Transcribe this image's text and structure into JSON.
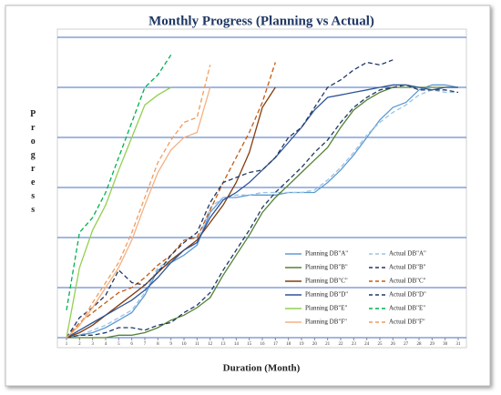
{
  "chart_data": {
    "type": "line",
    "title": "Monthly Progress (Planning vs Actual)",
    "x_label": "Duration (Month)",
    "y_label": "Progress",
    "categories": [
      "1",
      "2",
      "3",
      "4",
      "5",
      "6",
      "7",
      "8",
      "9",
      "10",
      "11",
      "12",
      "13",
      "14",
      "15",
      "16",
      "17",
      "18",
      "19",
      "20",
      "21",
      "22",
      "23",
      "24",
      "25",
      "26",
      "27",
      "28",
      "29",
      "30",
      "31"
    ],
    "ylim": [
      0,
      120
    ],
    "yticks": [
      0,
      20,
      40,
      60,
      80,
      100,
      120
    ],
    "ytick_labels": false,
    "grid": true,
    "legend": "lower right",
    "series": [
      {
        "name": "Planning DB\"A\"",
        "color": "#5b9bd5",
        "dashed": false,
        "values": [
          0,
          1,
          2,
          4,
          7,
          10,
          17,
          27,
          30,
          33,
          37,
          50,
          56,
          56,
          57,
          57,
          57,
          58,
          58,
          58,
          62,
          67,
          73,
          80,
          87,
          92,
          94,
          99,
          101,
          101,
          100
        ]
      },
      {
        "name": "Actual DB\"A\"",
        "color": "#9dc3e6",
        "dashed": true,
        "values": [
          0,
          1,
          3,
          5,
          8,
          11,
          18,
          28,
          31,
          35,
          38,
          52,
          56,
          57,
          57,
          58,
          58,
          58,
          58,
          59,
          63,
          68,
          74,
          81,
          86,
          90,
          93,
          97,
          99,
          98,
          98
        ]
      },
      {
        "name": "Planning DB\"B\"",
        "color": "#548235",
        "dashed": false,
        "values": [
          0,
          0,
          0,
          0,
          1,
          1,
          2,
          4,
          7,
          9,
          12,
          16,
          25,
          33,
          41,
          50,
          56,
          61,
          66,
          71,
          76,
          84,
          91,
          95,
          98,
          100,
          100,
          100,
          100,
          100,
          100
        ]
      },
      {
        "name": "Actual DB\"B\"",
        "color": "#1f3864",
        "dashed": true,
        "values": [
          0,
          1,
          1,
          2,
          4,
          4,
          3,
          5,
          6,
          10,
          13,
          18,
          27,
          35,
          43,
          52,
          58,
          63,
          68,
          74,
          79,
          86,
          92,
          96,
          99,
          100,
          101,
          99,
          99,
          99,
          98
        ]
      },
      {
        "name": "Planning DB\"C\"",
        "color": "#843c0c",
        "dashed": false,
        "values": [
          0,
          2,
          5,
          9,
          13,
          17,
          21,
          26,
          31,
          35,
          39,
          46,
          53,
          62,
          74,
          92,
          100,
          null,
          null,
          null,
          null,
          null,
          null,
          null,
          null,
          null,
          null,
          null,
          null,
          null,
          null
        ]
      },
      {
        "name": "Actual DB\"C\"",
        "color": "#c55a11",
        "dashed": true,
        "values": [
          0,
          6,
          10,
          14,
          18,
          20,
          24,
          29,
          33,
          39,
          40,
          51,
          62,
          72,
          82,
          94,
          110,
          null,
          null,
          null,
          null,
          null,
          null,
          null,
          null,
          null,
          null,
          null,
          null,
          null,
          null
        ]
      },
      {
        "name": "Planning  DB\"D\"",
        "color": "#2f5597",
        "dashed": false,
        "values": [
          0,
          3,
          6,
          9,
          12,
          15,
          19,
          24,
          30,
          35,
          38,
          48,
          55,
          58,
          62,
          67,
          72,
          78,
          84,
          91,
          96,
          97,
          98,
          99,
          100,
          101,
          101,
          100,
          99,
          100,
          100
        ]
      },
      {
        "name": "Actual DB\"D\"",
        "color": "#203864",
        "dashed": true,
        "values": [
          0,
          8,
          12,
          17,
          27,
          22,
          21,
          26,
          33,
          38,
          42,
          54,
          62,
          64,
          66,
          67,
          72,
          80,
          84,
          92,
          100,
          103,
          107,
          110,
          109,
          111,
          null,
          null,
          null,
          null,
          null
        ]
      },
      {
        "name": "Planning DB\"E\"",
        "color": "#92d050",
        "dashed": false,
        "values": [
          0,
          28,
          43,
          53,
          67,
          80,
          93,
          97,
          100,
          null,
          null,
          null,
          null,
          null,
          null,
          null,
          null,
          null,
          null,
          null,
          null,
          null,
          null,
          null,
          null,
          null,
          null,
          null,
          null,
          null,
          null
        ]
      },
      {
        "name": "Actual DB\"E\"",
        "color": "#00b050",
        "dashed": true,
        "values": [
          11,
          42,
          48,
          58,
          72,
          86,
          100,
          105,
          113,
          null,
          null,
          null,
          null,
          null,
          null,
          null,
          null,
          null,
          null,
          null,
          null,
          null,
          null,
          null,
          null,
          null,
          null,
          null,
          null,
          null,
          null
        ]
      },
      {
        "name": "Planning  DB\"F\"",
        "color": "#f4b183",
        "dashed": false,
        "values": [
          0,
          5,
          12,
          20,
          28,
          39,
          53,
          66,
          75,
          80,
          82,
          100,
          null,
          null,
          null,
          null,
          null,
          null,
          null,
          null,
          null,
          null,
          null,
          null,
          null,
          null,
          null,
          null,
          null,
          null,
          null
        ]
      },
      {
        "name": "Actual DB\"F\"",
        "color": "#f19c5f",
        "dashed": true,
        "values": [
          0,
          5,
          14,
          22,
          30,
          42,
          56,
          70,
          79,
          86,
          88,
          109,
          null,
          null,
          null,
          null,
          null,
          null,
          null,
          null,
          null,
          null,
          null,
          null,
          null,
          null,
          null,
          null,
          null,
          null,
          null
        ]
      }
    ]
  }
}
